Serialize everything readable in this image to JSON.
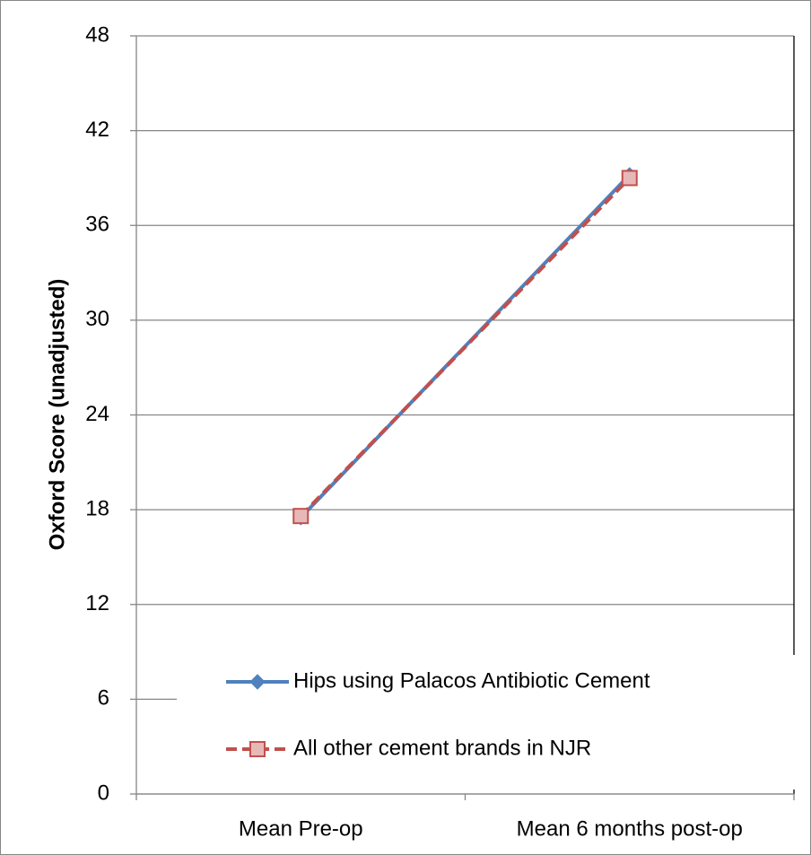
{
  "chart_data": {
    "type": "line",
    "ylabel": "Oxford Score (unadjusted)",
    "categories": [
      "Mean Pre-op",
      "Mean 6 months post-op"
    ],
    "series": [
      {
        "name": "Hips using Palacos Antibiotic Cement",
        "color": "#4f81bd",
        "marker": "diamond",
        "dash": "solid",
        "values": [
          17.5,
          39.2
        ]
      },
      {
        "name": "All other cement brands in NJR",
        "color": "#c0504d",
        "marker": "square",
        "dash": "dashed",
        "values": [
          17.6,
          39.0
        ]
      }
    ],
    "ylim": [
      0,
      48
    ],
    "yticks": [
      0,
      6,
      12,
      18,
      24,
      30,
      36,
      42,
      48
    ],
    "grid": true,
    "legend": "lower right"
  }
}
